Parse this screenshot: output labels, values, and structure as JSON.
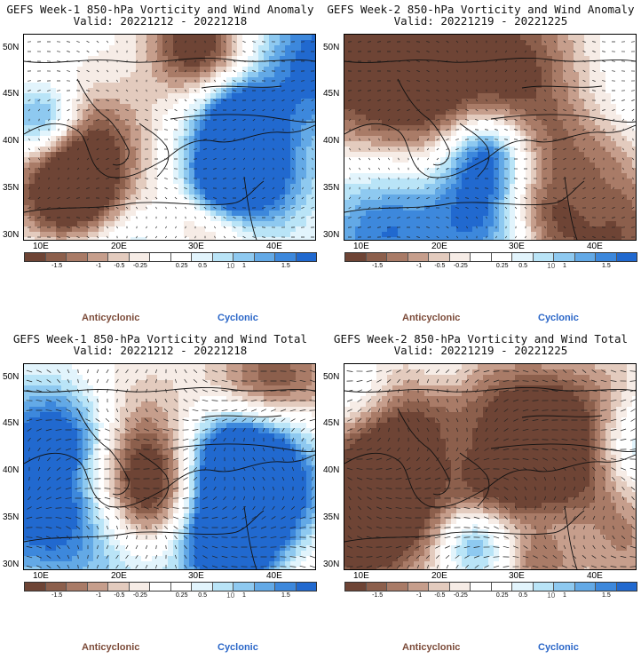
{
  "colors": {
    "bins": [
      "#6e4435",
      "#8c5f4c",
      "#a97b67",
      "#c69e8c",
      "#e3cbbe",
      "#f6ece6",
      "#ffffff",
      "#ffffff",
      "#e2f4fc",
      "#b9e4f7",
      "#8ec9f0",
      "#63a9e6",
      "#3d88dc",
      "#2169cf"
    ],
    "anticyclonic": "#7b4a38",
    "cyclonic": "#2a66c8"
  },
  "axes": {
    "lat_labels": [
      "50N",
      "45N",
      "40N",
      "35N",
      "30N"
    ],
    "lon_labels": [
      "10E",
      "20E",
      "30E",
      "40E"
    ]
  },
  "colorbar": {
    "tick_labels": [
      "-1.5",
      "-1",
      "-0.5",
      "-0.25",
      "0.25",
      "0.5",
      "1",
      "1.5"
    ],
    "unit_label": "10"
  },
  "panels": [
    {
      "title": "GEFS Week-1 850-hPa Vorticity and Wind Anomaly",
      "valid": "Valid: 20221212 - 20221218",
      "anti_label": "Anticyclonic",
      "cyc_label": "Cyclonic",
      "seed": 11
    },
    {
      "title": "GEFS Week-2 850-hPa Vorticity and Wind Anomaly",
      "valid": "Valid: 20221219 - 20221225",
      "anti_label": "Anticyclonic",
      "cyc_label": "Cyclonic",
      "seed": 23
    },
    {
      "title": "GEFS Week-1 850-hPa Vorticity and Wind Total",
      "valid": "Valid: 20221212 - 20221218",
      "anti_label": "Anticyclonic",
      "cyc_label": "Cyclonic",
      "seed": 37
    },
    {
      "title": "GEFS Week-2 850-hPa Vorticity and Wind Total",
      "valid": "Valid: 20221219 - 20221225",
      "anti_label": "Anticyclonic",
      "cyc_label": "Cyclonic",
      "seed": 53
    }
  ]
}
